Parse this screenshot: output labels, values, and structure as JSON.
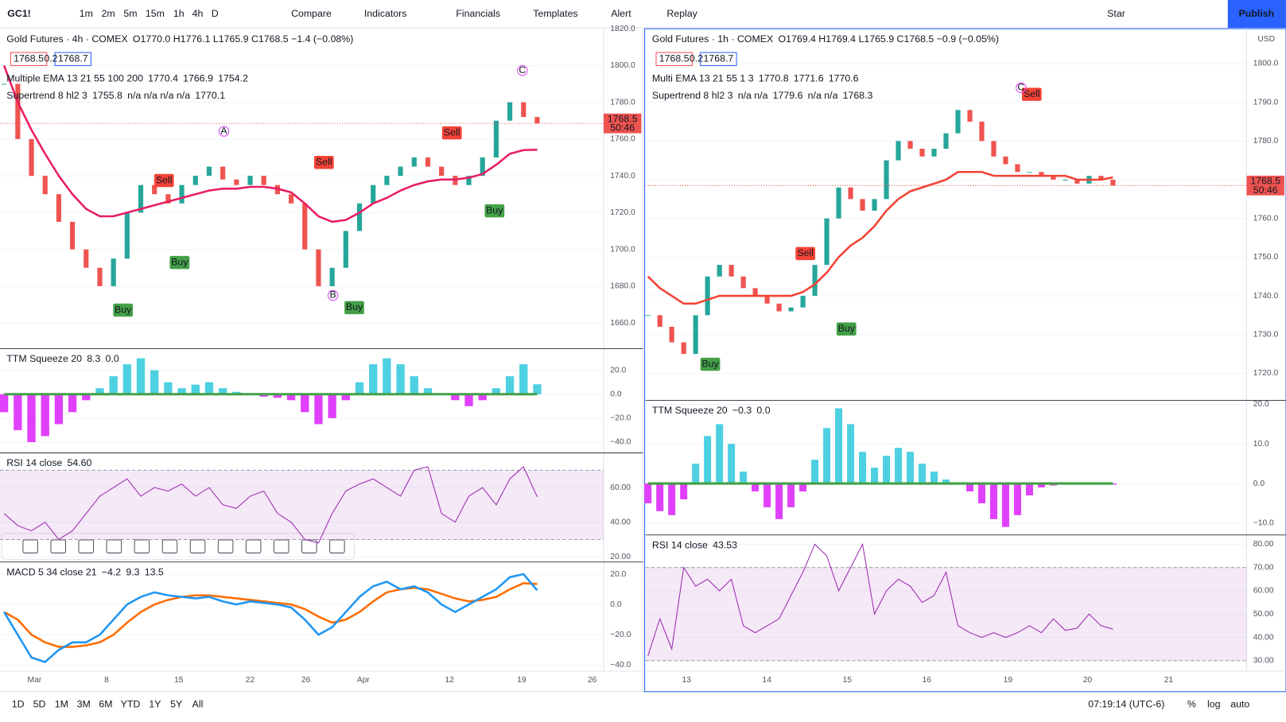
{
  "toolbar": {
    "symbol": "GC1!",
    "intervals": [
      "1m",
      "2m",
      "5m",
      "15m",
      "1h",
      "4h",
      "D"
    ],
    "buttons": [
      "Compare",
      "Indicators",
      "Financials",
      "Templates",
      "Alert",
      "Replay"
    ],
    "right_buttons": [
      "Star",
      "Publish"
    ]
  },
  "panes": [
    {
      "title": "Gold Futures · 4h · COMEX",
      "ohlc": "O1770.0 H1776.1 L1765.9 C1768.5 −1.4 (−0.08%)",
      "bid": "1768.5",
      "spread": "0.2",
      "ask": "1768.7",
      "legends": [
        {
          "name": "Multiple EMA 13 21 55 100 200",
          "values": [
            {
              "text": "1770.4",
              "color": "#9c27b0"
            },
            {
              "text": "1766.9",
              "color": "#2196f3"
            },
            {
              "text": "1754.2",
              "color": "#e91e63"
            }
          ]
        },
        {
          "name": "Supertrend 8 hl2 3",
          "values": [
            {
              "text": "1755.8",
              "color": "#43a047"
            },
            {
              "text": "n/a n/a n/a n/a",
              "color": "#787b86"
            },
            {
              "text": "1770.1",
              "color": "#2196f3"
            }
          ]
        }
      ],
      "price": {
        "ylim": [
          1646,
          1820
        ],
        "yticks": [
          {
            "value": 1660,
            "label": "1660.0"
          },
          {
            "value": 1680,
            "label": "1680.0"
          },
          {
            "value": 1700,
            "label": "1700.0"
          },
          {
            "value": 1720,
            "label": "1720.0"
          },
          {
            "value": 1740,
            "label": "1740.0"
          },
          {
            "value": 1760,
            "label": "1760.0"
          },
          {
            "value": 1780,
            "label": "1780.0"
          },
          {
            "value": 1800,
            "label": "1800.0"
          },
          {
            "value": 1820,
            "label": "1820.0"
          }
        ],
        "close": [
          1790,
          1760,
          1740,
          1730,
          1715,
          1700,
          1690,
          1680,
          1695,
          1720,
          1735,
          1730,
          1725,
          1735,
          1740,
          1745,
          1738,
          1735,
          1740,
          1735,
          1730,
          1725,
          1700,
          1680,
          1690,
          1710,
          1725,
          1735,
          1740,
          1745,
          1750,
          1745,
          1740,
          1735,
          1740,
          1750,
          1770,
          1780,
          1772,
          1768.5
        ],
        "ema": [
          1800,
          1780,
          1765,
          1752,
          1740,
          1730,
          1722,
          1718,
          1718,
          1720,
          1722,
          1724,
          1726,
          1728,
          1730,
          1732,
          1733,
          1733,
          1734,
          1734,
          1733,
          1731,
          1725,
          1718,
          1715,
          1716,
          1720,
          1725,
          1728,
          1732,
          1735,
          1737,
          1738,
          1738,
          1739,
          1741,
          1746,
          1752,
          1754,
          1754.2
        ],
        "last": "1768.5",
        "countdown": "50:46"
      },
      "x_labels": [
        "Mar",
        "8",
        "15",
        "22",
        "26",
        "Apr",
        "12",
        "19",
        "26"
      ],
      "signals": [
        "Buy",
        "Buy",
        "Buy",
        "Buy",
        "Sell",
        "Sell",
        "Sell"
      ],
      "marks": [
        "A",
        "B",
        "C"
      ],
      "indicators": [
        {
          "type": "histogram",
          "name": "TTM Squeeze 20",
          "legend": [
            {
              "text": "8.3",
              "color": "#26a69a"
            },
            {
              "text": "0.0",
              "color": "#43a047"
            }
          ],
          "ylim": [
            -49,
            38
          ],
          "yticks": [
            {
              "value": 20,
              "label": "20.0"
            },
            {
              "value": 0,
              "label": "0.0"
            },
            {
              "value": -20,
              "label": "−20.0"
            },
            {
              "value": -40,
              "label": "−40.0"
            }
          ],
          "values": [
            -15,
            -30,
            -40,
            -35,
            -25,
            -15,
            -5,
            5,
            15,
            25,
            30,
            20,
            10,
            5,
            8,
            10,
            5,
            2,
            0,
            -2,
            -3,
            -5,
            -15,
            -25,
            -20,
            -5,
            10,
            25,
            30,
            25,
            15,
            5,
            0,
            -5,
            -10,
            -5,
            5,
            15,
            25,
            8.3
          ]
        },
        {
          "type": "rsi",
          "name": "RSI 14 close",
          "legend": [
            {
              "text": "54.60",
              "color": "#9c27b0"
            }
          ],
          "ylim": [
            17,
            80
          ],
          "yticks": [
            {
              "value": 20,
              "label": "20.00"
            },
            {
              "value": 40,
              "label": "40.00"
            },
            {
              "value": 60,
              "label": "60.00"
            }
          ],
          "band": [
            30,
            70
          ],
          "values": [
            45,
            38,
            35,
            40,
            30,
            35,
            45,
            55,
            60,
            65,
            55,
            60,
            58,
            62,
            55,
            60,
            50,
            48,
            55,
            58,
            45,
            40,
            30,
            28,
            45,
            58,
            62,
            65,
            60,
            55,
            70,
            72,
            45,
            40,
            55,
            60,
            50,
            65,
            72,
            54.6
          ]
        },
        {
          "type": "macd",
          "name": "MACD 5 34 close 21",
          "legend": [
            {
              "text": "−4.2",
              "color": "#ef5350"
            },
            {
              "text": "9.3",
              "color": "#2196f3"
            },
            {
              "text": "13.5",
              "color": "#ff6d00"
            }
          ],
          "ylim": [
            -44,
            28
          ],
          "yticks": [
            {
              "value": 20,
              "label": "20.0"
            },
            {
              "value": 0,
              "label": "0.0"
            },
            {
              "value": -20,
              "label": "−20.0"
            },
            {
              "value": -40,
              "label": "−40.0"
            }
          ],
          "values": [
            -5,
            -20,
            -35,
            -38,
            -30,
            -25,
            -25,
            -20,
            -10,
            0,
            5,
            8,
            6,
            5,
            4,
            5,
            2,
            0,
            2,
            1,
            0,
            -2,
            -10,
            -20,
            -15,
            -5,
            5,
            12,
            15,
            10,
            12,
            8,
            0,
            -5,
            0,
            5,
            10,
            18,
            20,
            9.3
          ],
          "signal": [
            -5,
            -10,
            -20,
            -25,
            -28,
            -28,
            -27,
            -25,
            -20,
            -12,
            -5,
            0,
            3,
            5,
            6,
            6,
            5,
            4,
            3,
            2,
            1,
            0,
            -3,
            -8,
            -12,
            -10,
            -5,
            2,
            8,
            10,
            11,
            10,
            7,
            4,
            2,
            3,
            5,
            10,
            14,
            13.5
          ]
        }
      ]
    },
    {
      "title": "Gold Futures · 1h · COMEX",
      "ohlc": "O1769.4 H1769.4 L1765.9 C1768.5 −0.9 (−0.05%)",
      "bid": "1768.5",
      "spread": "0.2",
      "ask": "1768.7",
      "currency": "USD",
      "legends": [
        {
          "name": "Multi EMA 13 21 55 1 3",
          "values": [
            {
              "text": "1770.8",
              "color": "#9c27b0"
            },
            {
              "text": "1771.6",
              "color": "#3f51b5"
            },
            {
              "text": "1770.6",
              "color": "#f44336"
            }
          ]
        },
        {
          "name": "Supertrend 8 hl2 3",
          "values": [
            {
              "text": "n/a n/a",
              "color": "#787b86"
            },
            {
              "text": "1779.6",
              "color": "#f44336"
            },
            {
              "text": "n/a n/a",
              "color": "#787b86"
            },
            {
              "text": "1768.3",
              "color": "#2196f3"
            }
          ]
        }
      ],
      "price": {
        "ylim": [
          1713,
          1809
        ],
        "yticks": [
          {
            "value": 1720,
            "label": "1720.0"
          },
          {
            "value": 1730,
            "label": "1730.0"
          },
          {
            "value": 1740,
            "label": "1740.0"
          },
          {
            "value": 1750,
            "label": "1750.0"
          },
          {
            "value": 1760,
            "label": "1760.0"
          },
          {
            "value": 1770,
            "label": "1770.0"
          },
          {
            "value": 1780,
            "label": "1780.0"
          },
          {
            "value": 1790,
            "label": "1790.0"
          },
          {
            "value": 1800,
            "label": "1800.0"
          }
        ],
        "close": [
          1735,
          1732,
          1728,
          1725,
          1735,
          1745,
          1748,
          1745,
          1742,
          1740,
          1738,
          1736,
          1737,
          1740,
          1748,
          1760,
          1768,
          1765,
          1762,
          1765,
          1775,
          1780,
          1778,
          1776,
          1778,
          1782,
          1788,
          1785,
          1780,
          1776,
          1774,
          1772,
          1772,
          1771,
          1770,
          1770,
          1769,
          1771,
          1770,
          1768.5
        ],
        "ema": [
          1745,
          1742,
          1740,
          1738,
          1738,
          1739,
          1740,
          1740,
          1740,
          1740,
          1740,
          1740,
          1740,
          1741,
          1743,
          1746,
          1750,
          1753,
          1755,
          1758,
          1762,
          1765,
          1767,
          1768,
          1769,
          1770,
          1772,
          1772,
          1772,
          1771,
          1771,
          1771,
          1771,
          1771,
          1771,
          1771,
          1770,
          1770,
          1770,
          1770.6
        ],
        "last": "1768.5",
        "countdown": "50:46"
      },
      "x_labels": [
        "13",
        "14",
        "15",
        "16",
        "19",
        "20",
        "21"
      ],
      "signals": [
        "Buy",
        "Buy",
        "Sell",
        "Sell"
      ],
      "marks": [
        "C"
      ],
      "indicators": [
        {
          "type": "histogram",
          "name": "TTM Squeeze 20",
          "legend": [
            {
              "text": "−0.3",
              "color": "#e040fb"
            },
            {
              "text": "0.0",
              "color": "#ef5350"
            }
          ],
          "ylim": [
            -13,
            21
          ],
          "yticks": [
            {
              "value": 20,
              "label": "20.0"
            },
            {
              "value": 10,
              "label": "10.0"
            },
            {
              "value": 0,
              "label": "0.0"
            },
            {
              "value": -10,
              "label": "−10.0"
            }
          ],
          "values": [
            -5,
            -7,
            -8,
            -4,
            5,
            12,
            15,
            10,
            3,
            -2,
            -6,
            -9,
            -6,
            -2,
            6,
            14,
            19,
            15,
            8,
            4,
            7,
            9,
            8,
            5,
            3,
            1,
            0,
            -2,
            -5,
            -9,
            -11,
            -8,
            -3,
            -1,
            -0.5,
            -0.3,
            -0.3,
            -0.3,
            -0.3,
            -0.3
          ]
        },
        {
          "type": "rsi",
          "name": "RSI 14 close",
          "legend": [
            {
              "text": "43.53",
              "color": "#9c27b0"
            }
          ],
          "ylim": [
            25.5,
            84
          ],
          "yticks": [
            {
              "value": 30,
              "label": "30.00"
            },
            {
              "value": 40,
              "label": "40.00"
            },
            {
              "value": 50,
              "label": "50.00"
            },
            {
              "value": 60,
              "label": "60.00"
            },
            {
              "value": 70,
              "label": "70.00"
            },
            {
              "value": 80,
              "label": "80.00"
            }
          ],
          "band": [
            30,
            70
          ],
          "values": [
            32,
            48,
            35,
            70,
            62,
            65,
            60,
            65,
            45,
            42,
            45,
            48,
            58,
            68,
            80,
            75,
            60,
            70,
            80,
            50,
            60,
            65,
            62,
            55,
            58,
            68,
            45,
            42,
            40,
            42,
            40,
            42,
            45,
            42,
            48,
            43,
            44,
            50,
            45,
            43.53
          ]
        }
      ]
    }
  ],
  "bottom": {
    "ranges": [
      "1D",
      "5D",
      "1M",
      "3M",
      "6M",
      "YTD",
      "1Y",
      "5Y",
      "All"
    ],
    "clock": "07:19:14 (UTC-6)",
    "options": [
      "%",
      "log",
      "auto"
    ]
  }
}
